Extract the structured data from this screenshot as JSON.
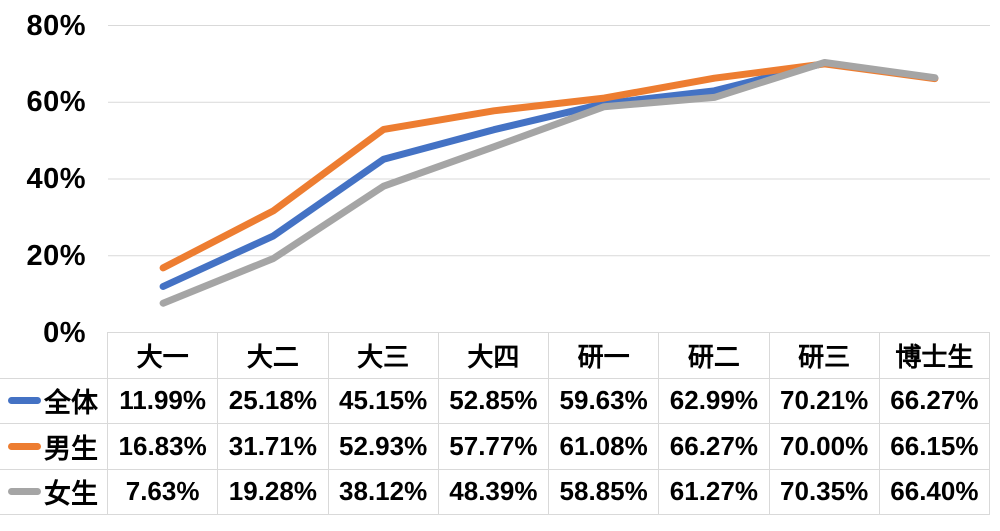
{
  "chart_data": {
    "type": "line",
    "title": "",
    "xlabel": "",
    "ylabel": "",
    "categories": [
      "大一",
      "大二",
      "大三",
      "大四",
      "研一",
      "研二",
      "研三",
      "博士生"
    ],
    "series": [
      {
        "name": "全体",
        "color": "#4472C4",
        "values": [
          11.99,
          25.18,
          45.15,
          52.85,
          59.63,
          62.99,
          70.21,
          66.27
        ],
        "display": [
          "11.99%",
          "25.18%",
          "45.15%",
          "52.85%",
          "59.63%",
          "62.99%",
          "70.21%",
          "66.27%"
        ]
      },
      {
        "name": "男生",
        "color": "#ED7D31",
        "values": [
          16.83,
          31.71,
          52.93,
          57.77,
          61.08,
          66.27,
          70.0,
          66.15
        ],
        "display": [
          "16.83%",
          "31.71%",
          "52.93%",
          "57.77%",
          "61.08%",
          "66.27%",
          "70.00%",
          "66.15%"
        ]
      },
      {
        "name": "女生",
        "color": "#A5A5A5",
        "values": [
          7.63,
          19.28,
          38.12,
          48.39,
          58.85,
          61.27,
          70.35,
          66.4
        ],
        "display": [
          "7.63%",
          "19.28%",
          "38.12%",
          "48.39%",
          "58.85%",
          "61.27%",
          "70.35%",
          "66.40%"
        ]
      }
    ],
    "y_axis": {
      "ticks": [
        {
          "value": 0,
          "label": "0%"
        },
        {
          "value": 20,
          "label": "20%"
        },
        {
          "value": 40,
          "label": "40%"
        },
        {
          "value": 60,
          "label": "60%"
        },
        {
          "value": 80,
          "label": "80%"
        }
      ],
      "min": 0,
      "max": 80
    },
    "grid": true,
    "gridline_color": "#D9D9D9",
    "text_color": "#000000",
    "background_color": "#FFFFFF",
    "legend_position": "data-table-left",
    "line_width": 7
  }
}
